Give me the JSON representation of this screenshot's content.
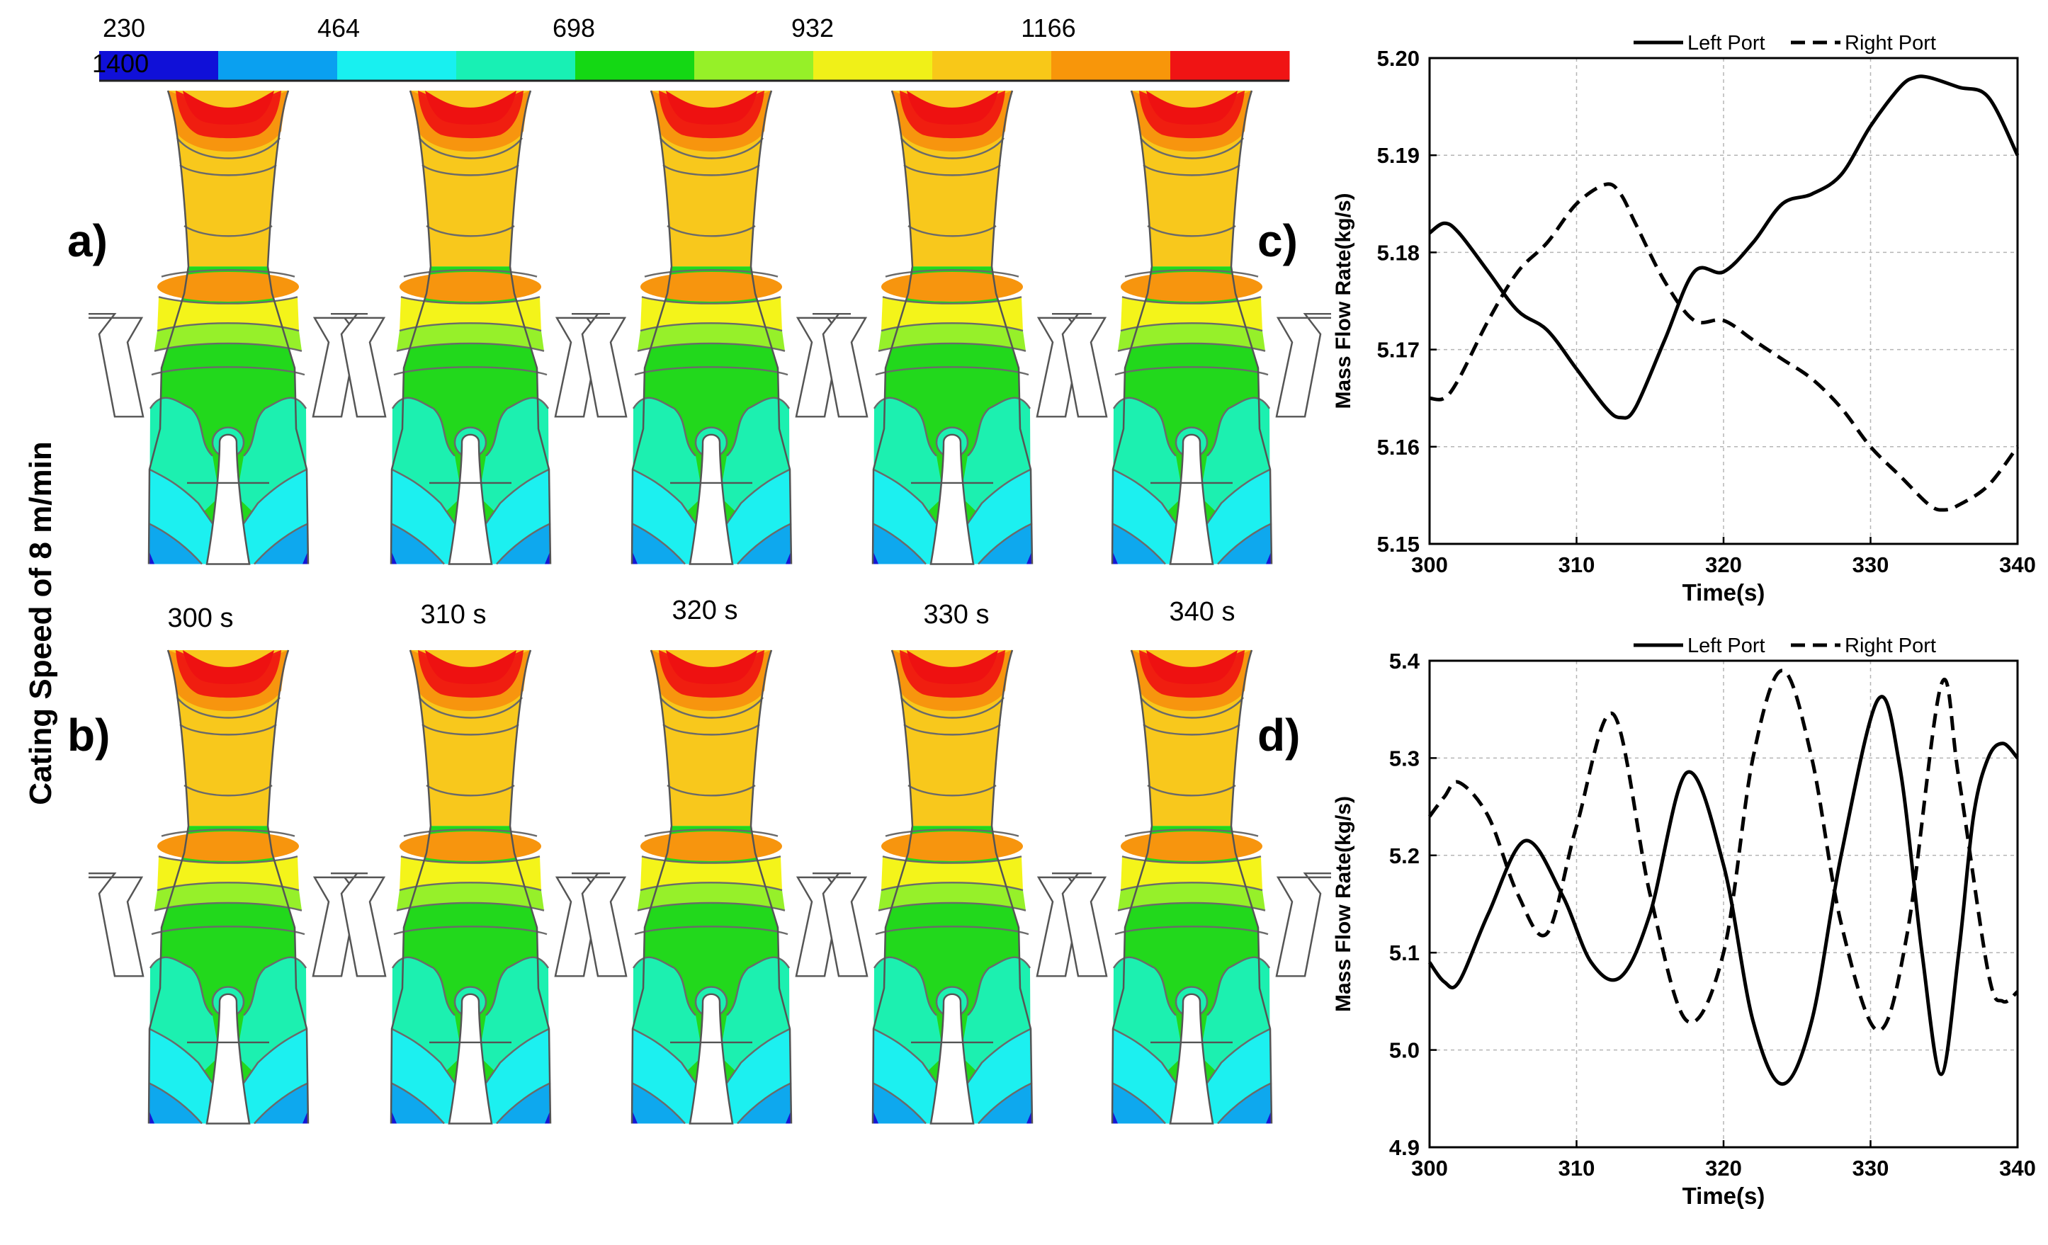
{
  "colorbar": {
    "ticks": [
      "230",
      "464",
      "698",
      "932",
      "1166"
    ],
    "end_label": "1400",
    "colors": [
      "#1010d8",
      "#0aa0f0",
      "#18f0f0",
      "#18f0b4",
      "#14d814",
      "#96f028",
      "#f0f018",
      "#f8c818",
      "#f8960a",
      "#f01414"
    ]
  },
  "row_labels": [
    "a)",
    "b)"
  ],
  "vertical_title": "Cating Speed of 8 m/min",
  "time_labels": [
    "300 s",
    "310 s",
    "320 s",
    "330 s",
    "340 s"
  ],
  "contour_colors": {
    "red": "#ee1111",
    "orange": "#f7950e",
    "yellow_orange": "#f8c81c",
    "yellow": "#f4f41a",
    "yellow_green": "#96f02a",
    "green": "#22d81c",
    "teal": "#1cf0b0",
    "cyan": "#1cf0f0",
    "light_blue": "#0ea8ee",
    "blue": "#1616d4"
  },
  "chart_data": [
    {
      "panel": "c)",
      "type": "line",
      "xlabel": "Time(s)",
      "ylabel": "Mass Flow Rate(kg/s)",
      "xlim": [
        300,
        340
      ],
      "ylim": [
        5.15,
        5.2
      ],
      "xticks": [
        "300",
        "310",
        "320",
        "330",
        "340"
      ],
      "yticks": [
        "5.15",
        "5.16",
        "5.17",
        "5.18",
        "5.19",
        "5.20"
      ],
      "grid": true,
      "legend_position": "top",
      "series": [
        {
          "name": "Left Port",
          "style": "solid",
          "x": [
            300,
            301,
            302,
            304,
            306,
            308,
            310,
            312,
            313,
            314,
            316,
            318,
            320,
            322,
            324,
            326,
            328,
            330,
            332,
            333,
            334,
            336,
            338,
            340
          ],
          "y": [
            5.182,
            5.183,
            5.182,
            5.178,
            5.174,
            5.172,
            5.168,
            5.164,
            5.163,
            5.164,
            5.171,
            5.178,
            5.178,
            5.181,
            5.185,
            5.186,
            5.188,
            5.193,
            5.197,
            5.198,
            5.198,
            5.197,
            5.196,
            5.19
          ]
        },
        {
          "name": "Right Port",
          "style": "dashed",
          "x": [
            300,
            301,
            302,
            304,
            306,
            308,
            310,
            312,
            313,
            314,
            316,
            318,
            320,
            322,
            324,
            326,
            328,
            330,
            332,
            334,
            335,
            336,
            338,
            340
          ],
          "y": [
            5.165,
            5.165,
            5.167,
            5.173,
            5.178,
            5.181,
            5.185,
            5.187,
            5.186,
            5.183,
            5.177,
            5.173,
            5.173,
            5.171,
            5.169,
            5.167,
            5.164,
            5.16,
            5.157,
            5.154,
            5.1535,
            5.154,
            5.156,
            5.16
          ]
        }
      ]
    },
    {
      "panel": "d)",
      "type": "line",
      "xlabel": "Time(s)",
      "ylabel": "Mass Flow Rate(kg/s)",
      "xlim": [
        300,
        340
      ],
      "ylim": [
        4.9,
        5.4
      ],
      "xticks": [
        "300",
        "310",
        "320",
        "330",
        "340"
      ],
      "yticks": [
        "4.9",
        "5.0",
        "5.1",
        "5.2",
        "5.3",
        "5.4"
      ],
      "grid": true,
      "legend_position": "top",
      "series": [
        {
          "name": "Left Port",
          "style": "solid",
          "x": [
            300,
            301,
            302,
            304,
            306.5,
            309,
            311,
            313,
            315,
            317.5,
            320,
            322,
            324,
            326,
            328,
            330.5,
            332,
            333.5,
            334.8,
            336,
            337,
            338,
            339,
            340
          ],
          "y": [
            5.09,
            5.07,
            5.07,
            5.14,
            5.215,
            5.16,
            5.09,
            5.075,
            5.14,
            5.285,
            5.19,
            5.03,
            4.965,
            5.03,
            5.2,
            5.36,
            5.29,
            5.1,
            4.975,
            5.1,
            5.24,
            5.3,
            5.315,
            5.3
          ]
        },
        {
          "name": "Right Port",
          "style": "dashed",
          "x": [
            300,
            301,
            302,
            304,
            306,
            308,
            310,
            312.5,
            315,
            317.5,
            320,
            322,
            324,
            326,
            328,
            330.5,
            332.5,
            334.8,
            336,
            338,
            339,
            340
          ],
          "y": [
            5.24,
            5.26,
            5.275,
            5.24,
            5.16,
            5.12,
            5.23,
            5.345,
            5.16,
            5.03,
            5.1,
            5.3,
            5.39,
            5.3,
            5.13,
            5.02,
            5.12,
            5.375,
            5.28,
            5.08,
            5.05,
            5.06
          ]
        }
      ]
    }
  ]
}
